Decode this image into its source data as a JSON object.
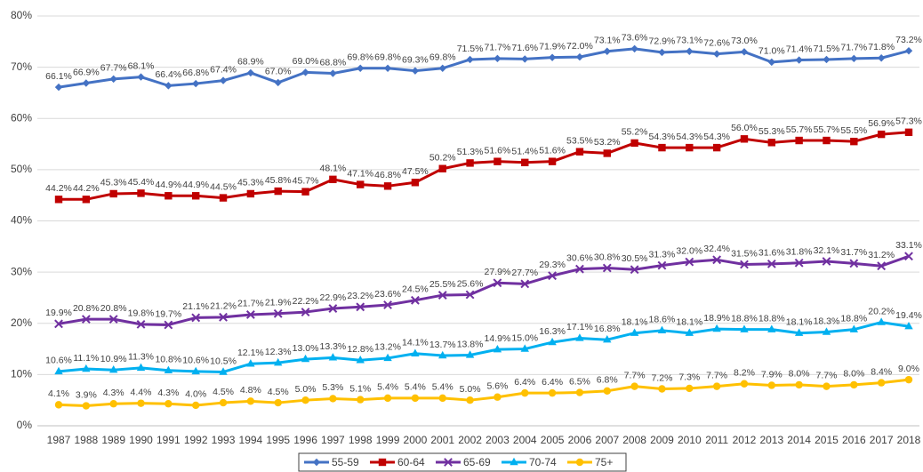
{
  "chart_data": {
    "type": "line",
    "categories": [
      "1987",
      "1988",
      "1989",
      "1990",
      "1991",
      "1992",
      "1993",
      "1994",
      "1995",
      "1996",
      "1997",
      "1998",
      "1999",
      "2000",
      "2001",
      "2002",
      "2003",
      "2004",
      "2005",
      "2006",
      "2007",
      "2008",
      "2009",
      "2010",
      "2011",
      "2012",
      "2013",
      "2014",
      "2015",
      "2016",
      "2017",
      "2018"
    ],
    "ylim": [
      0,
      80
    ],
    "yticks": [
      {
        "value": 0,
        "label": "0%"
      },
      {
        "value": 10,
        "label": "10%"
      },
      {
        "value": 20,
        "label": "20%"
      },
      {
        "value": 30,
        "label": "30%"
      },
      {
        "value": 40,
        "label": "40%"
      },
      {
        "value": 50,
        "label": "50%"
      },
      {
        "value": 60,
        "label": "60%"
      },
      {
        "value": 70,
        "label": "70%"
      },
      {
        "value": 80,
        "label": "80%"
      }
    ],
    "grid": true,
    "legend": "bottom",
    "series": [
      {
        "name": "55-59",
        "color": "#4472c4",
        "marker": "diamond",
        "values": [
          66.1,
          66.9,
          67.7,
          68.1,
          66.4,
          66.8,
          67.4,
          68.9,
          67.0,
          69.0,
          68.8,
          69.8,
          69.8,
          69.3,
          69.8,
          71.5,
          71.7,
          71.6,
          71.9,
          72.0,
          73.1,
          73.6,
          72.9,
          73.1,
          72.6,
          73.0,
          71.0,
          71.4,
          71.5,
          71.7,
          71.8,
          73.2
        ],
        "value_labels": [
          "66.1%",
          "66.9%",
          "67.7%",
          "68.1%",
          "66.4%",
          "66.8%",
          "67.4%",
          "68.9%",
          "67.0%",
          "69.0%",
          "68.8%",
          "69.8%",
          "69.8%",
          "69.3%",
          "69.8%",
          "71.5%",
          "71.7%",
          "71.6%",
          "71.9%",
          "72.0%",
          "73.1%",
          "73.6%",
          "72.9%",
          "73.1%",
          "72.6%",
          "73.0%",
          "71.0%",
          "71.4%",
          "71.5%",
          "71.7%",
          "71.8%",
          "73.2%"
        ]
      },
      {
        "name": "60-64",
        "color": "#c00000",
        "marker": "square",
        "values": [
          44.2,
          44.2,
          45.3,
          45.4,
          44.9,
          44.9,
          44.5,
          45.3,
          45.8,
          45.7,
          48.1,
          47.1,
          46.8,
          47.5,
          50.2,
          51.3,
          51.6,
          51.4,
          51.6,
          53.5,
          53.2,
          55.2,
          54.3,
          54.3,
          54.3,
          56.0,
          55.3,
          55.7,
          55.7,
          55.5,
          56.9,
          57.3
        ],
        "value_labels": [
          "44.2%",
          "44.2%",
          "45.3%",
          "45.4%",
          "44.9%",
          "44.9%",
          "44.5%",
          "45.3%",
          "45.8%",
          "45.7%",
          "48.1%",
          "47.1%",
          "46.8%",
          "47.5%",
          "50.2%",
          "51.3%",
          "51.6%",
          "51.4%",
          "51.6%",
          "53.5%",
          "53.2%",
          "55.2%",
          "54.3%",
          "54.3%",
          "54.3%",
          "56.0%",
          "55.3%",
          "55.7%",
          "55.7%",
          "55.5%",
          "56.9%",
          "57.3%"
        ]
      },
      {
        "name": "65-69",
        "color": "#7030a0",
        "marker": "x",
        "values": [
          19.9,
          20.8,
          20.8,
          19.8,
          19.7,
          21.1,
          21.2,
          21.7,
          21.9,
          22.2,
          22.9,
          23.2,
          23.6,
          24.5,
          25.5,
          25.6,
          27.9,
          27.7,
          29.3,
          30.6,
          30.8,
          30.5,
          31.3,
          32.0,
          32.4,
          31.5,
          31.6,
          31.8,
          32.1,
          31.7,
          31.2,
          33.1
        ],
        "value_labels": [
          "19.9%",
          "20.8%",
          "20.8%",
          "19.8%",
          "19.7%",
          "21.1%",
          "21.2%",
          "21.7%",
          "21.9%",
          "22.2%",
          "22.9%",
          "23.2%",
          "23.6%",
          "24.5%",
          "25.5%",
          "25.6%",
          "27.9%",
          "27.7%",
          "29.3%",
          "30.6%",
          "30.8%",
          "30.5%",
          "31.3%",
          "32.0%",
          "32.4%",
          "31.5%",
          "31.6%",
          "31.8%",
          "32.1%",
          "31.7%",
          "31.2%",
          "33.1%"
        ]
      },
      {
        "name": "70-74",
        "color": "#00b0f0",
        "marker": "triangle",
        "values": [
          10.6,
          11.1,
          10.9,
          11.3,
          10.8,
          10.6,
          10.5,
          12.1,
          12.3,
          13.0,
          13.3,
          12.8,
          13.2,
          14.1,
          13.7,
          13.8,
          14.9,
          15.0,
          16.3,
          17.1,
          16.8,
          18.1,
          18.6,
          18.1,
          18.9,
          18.8,
          18.8,
          18.1,
          18.3,
          18.8,
          20.2,
          19.4
        ],
        "value_labels": [
          "10.6%",
          "11.1%",
          "10.9%",
          "11.3%",
          "10.8%",
          "10.6%",
          "10.5%",
          "12.1%",
          "12.3%",
          "13.0%",
          "13.3%",
          "12.8%",
          "13.2%",
          "14.1%",
          "13.7%",
          "13.8%",
          "14.9%",
          "15.0%",
          "16.3%",
          "17.1%",
          "16.8%",
          "18.1%",
          "18.6%",
          "18.1%",
          "18.9%",
          "18.8%",
          "18.8%",
          "18.1%",
          "18.3%",
          "18.8%",
          "20.2%",
          "19.4%"
        ]
      },
      {
        "name": "75+",
        "color": "#ffc000",
        "marker": "circle",
        "values": [
          4.1,
          3.9,
          4.3,
          4.4,
          4.3,
          4.0,
          4.5,
          4.8,
          4.5,
          5.0,
          5.3,
          5.1,
          5.4,
          5.4,
          5.4,
          5.0,
          5.6,
          6.4,
          6.4,
          6.5,
          6.8,
          7.7,
          7.2,
          7.3,
          7.7,
          8.2,
          7.9,
          8.0,
          7.7,
          8.0,
          8.4,
          9.0
        ],
        "value_labels": [
          "4.1%",
          "3.9%",
          "4.3%",
          "4.4%",
          "4.3%",
          "4.0%",
          "4.5%",
          "4.8%",
          "4.5%",
          "5.0%",
          "5.3%",
          "5.1%",
          "5.4%",
          "5.4%",
          "5.4%",
          "5.0%",
          "5.6%",
          "6.4%",
          "6.4%",
          "6.5%",
          "6.8%",
          "7.7%",
          "7.2%",
          "7.3%",
          "7.7%",
          "8.2%",
          "7.9%",
          "8.0%",
          "7.7%",
          "8.0%",
          "8.4%",
          "9.0%"
        ]
      }
    ]
  }
}
